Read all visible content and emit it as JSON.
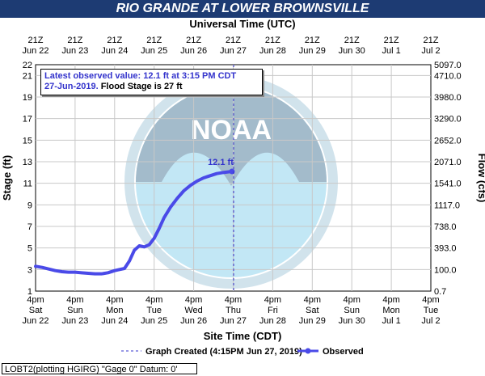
{
  "chart_data": {
    "type": "line",
    "title": "RIO GRANDE AT LOWER BROWNSVILLE",
    "top_axis_title": "Universal Time (UTC)",
    "xlabel": "Site Time (CDT)",
    "ylabel": "Stage (ft)",
    "ylabel_right": "Flow (cfs)",
    "ylim": [
      1,
      22
    ],
    "y_ticks": [
      1,
      3,
      5,
      7,
      9,
      11,
      13,
      15,
      17,
      19,
      21,
      22
    ],
    "y_right_ticks": [
      "0.7",
      "100.0",
      "393.0",
      "738.0",
      "1117.0",
      "1541.0",
      "2071.0",
      "2652.0",
      "3290.0",
      "3980.0",
      "4710.0",
      "5097.0"
    ],
    "x_range": [
      "Jun 22 4pm",
      "Jul 2 4pm"
    ],
    "bottom_ticks": [
      {
        "time": "4pm",
        "day": "Sat",
        "date": "Jun 22"
      },
      {
        "time": "4pm",
        "day": "Sun",
        "date": "Jun 23"
      },
      {
        "time": "4pm",
        "day": "Mon",
        "date": "Jun 24"
      },
      {
        "time": "4pm",
        "day": "Tue",
        "date": "Jun 25"
      },
      {
        "time": "4pm",
        "day": "Wed",
        "date": "Jun 26"
      },
      {
        "time": "4pm",
        "day": "Thu",
        "date": "Jun 27"
      },
      {
        "time": "4pm",
        "day": "Fri",
        "date": "Jun 28"
      },
      {
        "time": "4pm",
        "day": "Sat",
        "date": "Jun 29"
      },
      {
        "time": "4pm",
        "day": "Sun",
        "date": "Jun 30"
      },
      {
        "time": "4pm",
        "day": "Mon",
        "date": "Jul 1"
      },
      {
        "time": "4pm",
        "day": "Tue",
        "date": "Jul 2"
      }
    ],
    "top_ticks": [
      {
        "time": "21Z",
        "date": "Jun 22"
      },
      {
        "time": "21Z",
        "date": "Jun 23"
      },
      {
        "time": "21Z",
        "date": "Jun 24"
      },
      {
        "time": "21Z",
        "date": "Jun 25"
      },
      {
        "time": "21Z",
        "date": "Jun 26"
      },
      {
        "time": "21Z",
        "date": "Jun 27"
      },
      {
        "time": "21Z",
        "date": "Jun 28"
      },
      {
        "time": "21Z",
        "date": "Jun 29"
      },
      {
        "time": "21Z",
        "date": "Jun 30"
      },
      {
        "time": "21Z",
        "date": "Jul 1"
      },
      {
        "time": "21Z",
        "date": "Jul 2"
      }
    ],
    "series": [
      {
        "name": "Observed",
        "color": "#4a4ae8",
        "x": [
          "2019-06-22 16:00",
          "2019-06-22 20:00",
          "2019-06-23 00:00",
          "2019-06-23 04:00",
          "2019-06-23 08:00",
          "2019-06-23 12:00",
          "2019-06-23 16:00",
          "2019-06-23 20:00",
          "2019-06-24 00:00",
          "2019-06-24 04:00",
          "2019-06-24 08:00",
          "2019-06-24 12:00",
          "2019-06-24 16:00",
          "2019-06-24 19:00",
          "2019-06-24 22:00",
          "2019-06-25 01:00",
          "2019-06-25 04:00",
          "2019-06-25 07:00",
          "2019-06-25 10:00",
          "2019-06-25 13:00",
          "2019-06-25 16:00",
          "2019-06-25 19:00",
          "2019-06-25 22:00",
          "2019-06-26 02:00",
          "2019-06-26 06:00",
          "2019-06-26 10:00",
          "2019-06-26 14:00",
          "2019-06-26 18:00",
          "2019-06-26 22:00",
          "2019-06-27 02:00",
          "2019-06-27 06:00",
          "2019-06-27 10:00",
          "2019-06-27 15:15"
        ],
        "values": [
          3.3,
          3.2,
          3.05,
          2.9,
          2.8,
          2.75,
          2.75,
          2.7,
          2.65,
          2.6,
          2.6,
          2.7,
          2.9,
          3.0,
          3.1,
          3.8,
          4.8,
          5.2,
          5.1,
          5.3,
          5.9,
          6.8,
          7.8,
          8.8,
          9.6,
          10.3,
          10.8,
          11.2,
          11.5,
          11.7,
          11.9,
          12.0,
          12.1
        ]
      }
    ],
    "last_value_label": "12.1 ft",
    "annotation_line1": "Latest observed value: 12.1 ft at 3:15 PM CDT",
    "annotation_line2a": "27-Jun-2019.",
    "annotation_line2b": "  Flood Stage is 27 ft",
    "graph_created_x": "2019-06-27 16:15",
    "legend_graph_created": "Graph Created (4:15PM Jun 27, 2019)",
    "legend_observed": "Observed",
    "footer": "LOBT2(plotting HGIRG) \"Gage 0\" Datum: 0'",
    "grid": true,
    "colors": {
      "title_bar": "#1d3b73",
      "series": "#4a4ae8",
      "annotation": "#3333cc",
      "grid": "#c8c8c8",
      "noaa_logo": "#a9d8ef"
    }
  }
}
